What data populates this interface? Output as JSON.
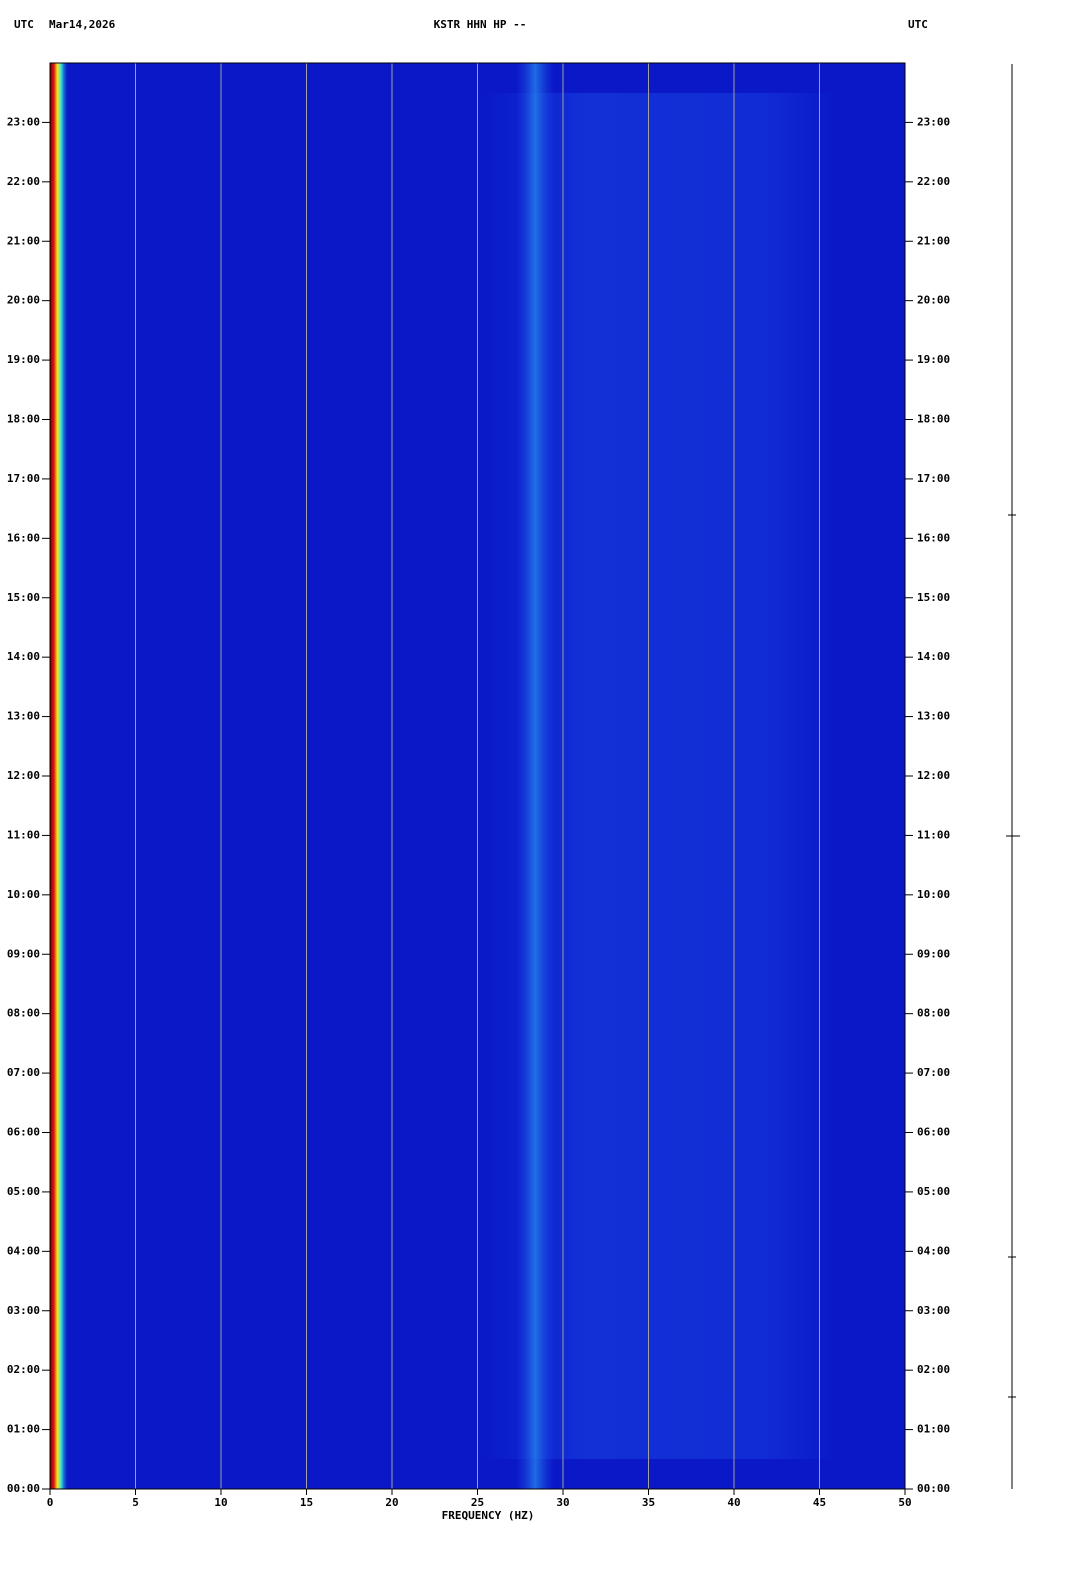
{
  "chart_data": {
    "type": "spectrogram",
    "title": "KSTR HHN HP --",
    "timezone_left": "UTC",
    "date": "Mar14,2026",
    "timezone_right": "UTC",
    "x_label": "FREQUENCY (HZ)",
    "xlim": [
      0,
      50
    ],
    "xticks": [
      0,
      5,
      10,
      15,
      20,
      25,
      30,
      35,
      40,
      45,
      50
    ],
    "ylim": [
      0,
      24
    ],
    "yticks": [
      {
        "value": 0,
        "label": "00:00"
      },
      {
        "value": 1,
        "label": "01:00"
      },
      {
        "value": 2,
        "label": "02:00"
      },
      {
        "value": 3,
        "label": "03:00"
      },
      {
        "value": 4,
        "label": "04:00"
      },
      {
        "value": 5,
        "label": "05:00"
      },
      {
        "value": 6,
        "label": "06:00"
      },
      {
        "value": 7,
        "label": "07:00"
      },
      {
        "value": 8,
        "label": "08:00"
      },
      {
        "value": 9,
        "label": "09:00"
      },
      {
        "value": 10,
        "label": "10:00"
      },
      {
        "value": 11,
        "label": "11:00"
      },
      {
        "value": 12,
        "label": "12:00"
      },
      {
        "value": 13,
        "label": "13:00"
      },
      {
        "value": 14,
        "label": "14:00"
      },
      {
        "value": 15,
        "label": "15:00"
      },
      {
        "value": 16,
        "label": "16:00"
      },
      {
        "value": 17,
        "label": "17:00"
      },
      {
        "value": 18,
        "label": "18:00"
      },
      {
        "value": 19,
        "label": "19:00"
      },
      {
        "value": 20,
        "label": "20:00"
      },
      {
        "value": 21,
        "label": "21:00"
      },
      {
        "value": 22,
        "label": "22:00"
      },
      {
        "value": 23,
        "label": "23:00"
      }
    ],
    "grid": true,
    "grid_color": "#a0a0a0",
    "background_color": "#0a18c8"
  }
}
